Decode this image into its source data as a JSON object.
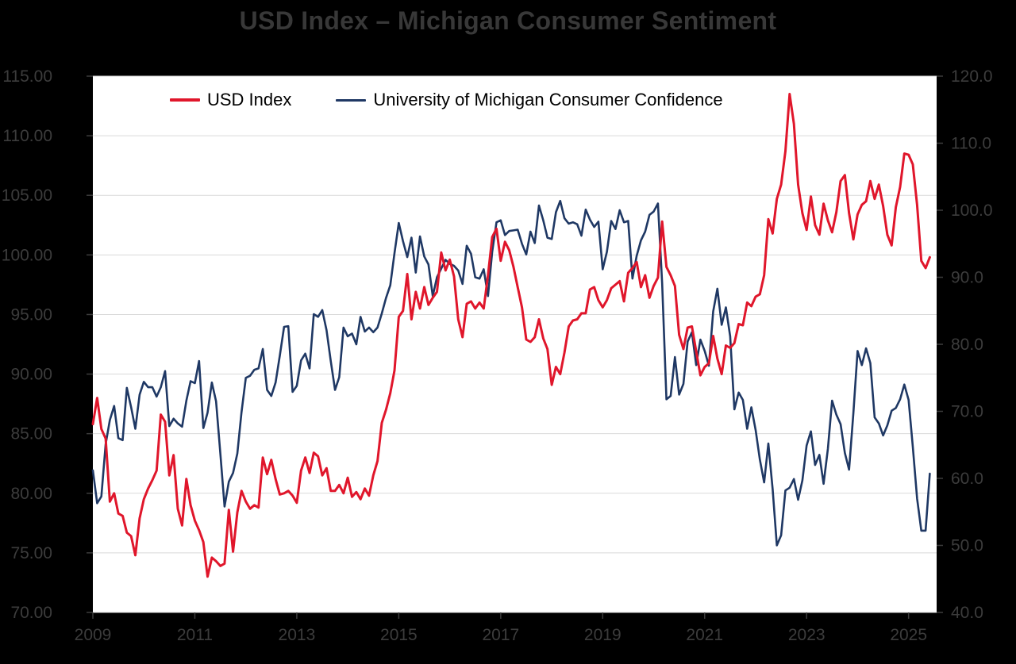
{
  "page": {
    "background": "#000000"
  },
  "chart_data": {
    "type": "line",
    "title": "USD Index – Michigan Consumer Sentiment",
    "legend_position": "top-inside",
    "grid": true,
    "x_ticks": [
      "2009",
      "2011",
      "2013",
      "2015",
      "2017",
      "2019",
      "2021",
      "2023",
      "2025"
    ],
    "x_tick_values": [
      2009,
      2011,
      2013,
      2015,
      2017,
      2019,
      2021,
      2023,
      2025
    ],
    "x_range": [
      2009.0,
      2025.55
    ],
    "x_start": 2009.0,
    "x_step": 0.0833333,
    "left_axis": {
      "range": [
        70,
        115
      ],
      "tick_values": [
        115,
        110,
        105,
        100,
        95,
        90,
        85,
        80,
        75,
        70
      ],
      "tick_labels": [
        "115.00",
        "110.00",
        "105.00",
        "100.00",
        "95.00",
        "90.00",
        "85.00",
        "80.00",
        "75.00",
        "70.00"
      ]
    },
    "right_axis": {
      "range": [
        40,
        120
      ],
      "tick_values": [
        120,
        110,
        100,
        90,
        80,
        70,
        60,
        50,
        40
      ],
      "tick_labels": [
        "120.0",
        "110.0",
        "100.0",
        "90.0",
        "80.0",
        "70.0",
        "60.0",
        "50.0",
        "40.0"
      ]
    },
    "series": [
      {
        "name": "USD Index",
        "axis": "left",
        "color": "#E0162B",
        "values": [
          85.8,
          88.0,
          85.4,
          84.6,
          79.3,
          80.0,
          78.3,
          78.1,
          76.7,
          76.4,
          74.8,
          77.9,
          79.5,
          80.4,
          81.1,
          81.9,
          86.6,
          86.0,
          81.5,
          83.2,
          78.7,
          77.3,
          81.2,
          79.0,
          77.7,
          76.9,
          75.9,
          73.0,
          74.6,
          74.3,
          73.9,
          74.1,
          78.6,
          75.1,
          78.4,
          80.2,
          79.3,
          78.7,
          79.0,
          78.8,
          83.0,
          81.6,
          82.8,
          81.2,
          79.9,
          80.0,
          80.2,
          79.8,
          79.2,
          81.9,
          83.0,
          81.7,
          83.4,
          83.1,
          81.5,
          82.1,
          80.2,
          80.2,
          80.7,
          80.0,
          81.3,
          79.7,
          80.1,
          79.5,
          80.4,
          79.8,
          81.5,
          82.7,
          85.9,
          87.0,
          88.4,
          90.3,
          94.8,
          95.3,
          98.4,
          94.6,
          96.9,
          95.5,
          97.3,
          95.8,
          96.4,
          96.9,
          100.2,
          98.7,
          99.6,
          98.2,
          94.6,
          93.1,
          95.9,
          96.1,
          95.5,
          96.0,
          95.5,
          98.3,
          101.5,
          102.2,
          99.5,
          101.1,
          100.4,
          99.0,
          97.3,
          95.6,
          92.9,
          92.7,
          93.1,
          94.6,
          93.0,
          92.1,
          89.1,
          90.6,
          90.0,
          91.8,
          94.0,
          94.5,
          94.6,
          95.1,
          95.1,
          97.1,
          97.3,
          96.2,
          95.6,
          96.2,
          97.2,
          97.5,
          97.8,
          96.1,
          98.5,
          98.9,
          99.4,
          97.3,
          98.3,
          96.4,
          97.4,
          98.1,
          102.8,
          99.0,
          98.3,
          97.4,
          93.3,
          92.1,
          93.9,
          94.0,
          91.9,
          89.9,
          90.6,
          90.9,
          93.2,
          91.3,
          90.0,
          92.4,
          92.2,
          92.6,
          94.2,
          94.1,
          96.0,
          95.7,
          96.5,
          96.7,
          98.3,
          103.0,
          101.8,
          104.7,
          105.9,
          108.7,
          113.5,
          111.0,
          105.9,
          103.5,
          102.1,
          104.9,
          102.5,
          101.7,
          104.3,
          102.9,
          101.9,
          103.6,
          106.2,
          106.7,
          103.5,
          101.3,
          103.4,
          104.2,
          104.5,
          106.2,
          104.7,
          105.9,
          104.1,
          101.7,
          100.8,
          104.0,
          105.7,
          108.5,
          108.4,
          107.6,
          104.2,
          99.5,
          98.9,
          99.8
        ]
      },
      {
        "name": "University of Michigan Consumer Confidence",
        "axis": "right",
        "color": "#1F3864",
        "values": [
          61.2,
          56.3,
          57.3,
          65.1,
          68.7,
          70.8,
          66.0,
          65.7,
          73.5,
          70.6,
          67.4,
          72.5,
          74.4,
          73.6,
          73.6,
          72.2,
          73.6,
          76.0,
          67.8,
          68.9,
          68.2,
          67.7,
          71.6,
          74.5,
          74.2,
          77.5,
          67.5,
          69.8,
          74.3,
          71.5,
          63.7,
          55.8,
          59.5,
          60.8,
          63.7,
          69.9,
          75.0,
          75.3,
          76.2,
          76.4,
          79.3,
          73.2,
          72.3,
          74.3,
          78.3,
          82.6,
          82.7,
          72.9,
          73.8,
          77.6,
          78.6,
          76.4,
          84.5,
          84.1,
          85.1,
          82.1,
          77.5,
          73.2,
          75.1,
          82.5,
          81.2,
          81.6,
          80.0,
          84.1,
          81.9,
          82.5,
          81.8,
          82.5,
          84.6,
          86.9,
          88.8,
          93.6,
          98.1,
          95.4,
          93.0,
          95.9,
          90.7,
          96.1,
          93.1,
          91.9,
          87.2,
          90.0,
          91.3,
          92.6,
          92.0,
          91.7,
          91.0,
          89.0,
          94.7,
          93.5,
          90.0,
          89.8,
          91.2,
          87.2,
          93.8,
          98.2,
          98.5,
          96.3,
          96.9,
          97.0,
          97.1,
          95.0,
          93.4,
          96.8,
          95.1,
          100.7,
          98.5,
          95.9,
          95.7,
          99.7,
          101.4,
          98.8,
          98.0,
          98.2,
          97.9,
          96.2,
          100.1,
          98.6,
          97.5,
          98.3,
          91.2,
          93.8,
          98.4,
          97.2,
          100.0,
          98.2,
          98.4,
          89.8,
          93.2,
          95.5,
          96.8,
          99.3,
          99.8,
          101.0,
          89.1,
          71.8,
          72.3,
          78.1,
          72.5,
          74.1,
          80.4,
          81.8,
          76.9,
          80.7,
          79.0,
          76.8,
          84.9,
          88.3,
          82.9,
          85.5,
          81.2,
          70.3,
          72.8,
          71.7,
          67.4,
          70.6,
          67.2,
          62.8,
          59.4,
          65.2,
          58.4,
          50.0,
          51.5,
          58.2,
          58.6,
          59.9,
          56.8,
          59.7,
          64.9,
          67.0,
          62.0,
          63.5,
          59.2,
          64.4,
          71.6,
          69.5,
          68.1,
          63.8,
          61.3,
          69.7,
          79.0,
          76.9,
          79.4,
          77.2,
          69.1,
          68.2,
          66.4,
          67.9,
          70.1,
          70.5,
          71.8,
          74.0,
          71.7,
          64.7,
          57.0,
          52.2,
          52.2,
          60.7
        ]
      }
    ],
    "style": {
      "plot_background": "#FFFFFF",
      "gridline_color": "#D9D9D9",
      "tick_text_color": "#3C3C3C",
      "legend_text_color": "#000000"
    }
  }
}
